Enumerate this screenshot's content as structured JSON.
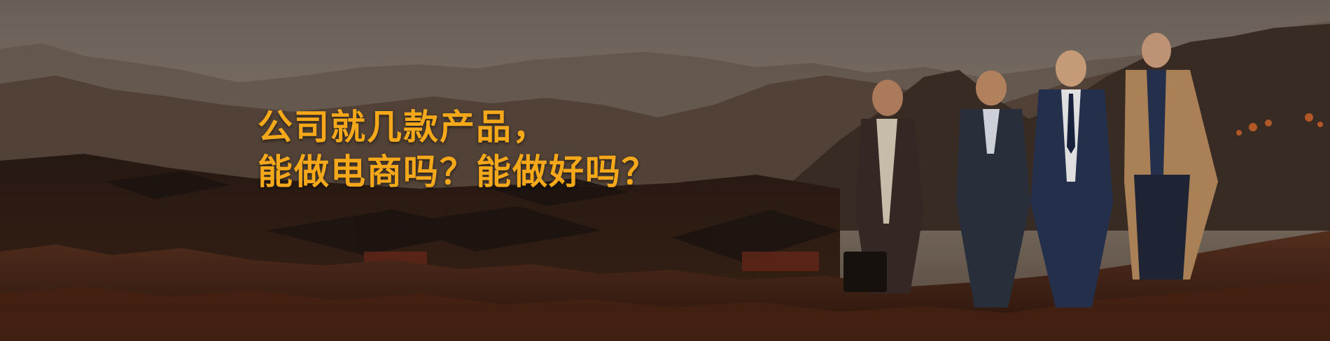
{
  "banner": {
    "headline_line1": "公司就几款产品，",
    "headline_line2": "能做电商吗？能做好吗？",
    "headline_color": "#f4a81a"
  }
}
